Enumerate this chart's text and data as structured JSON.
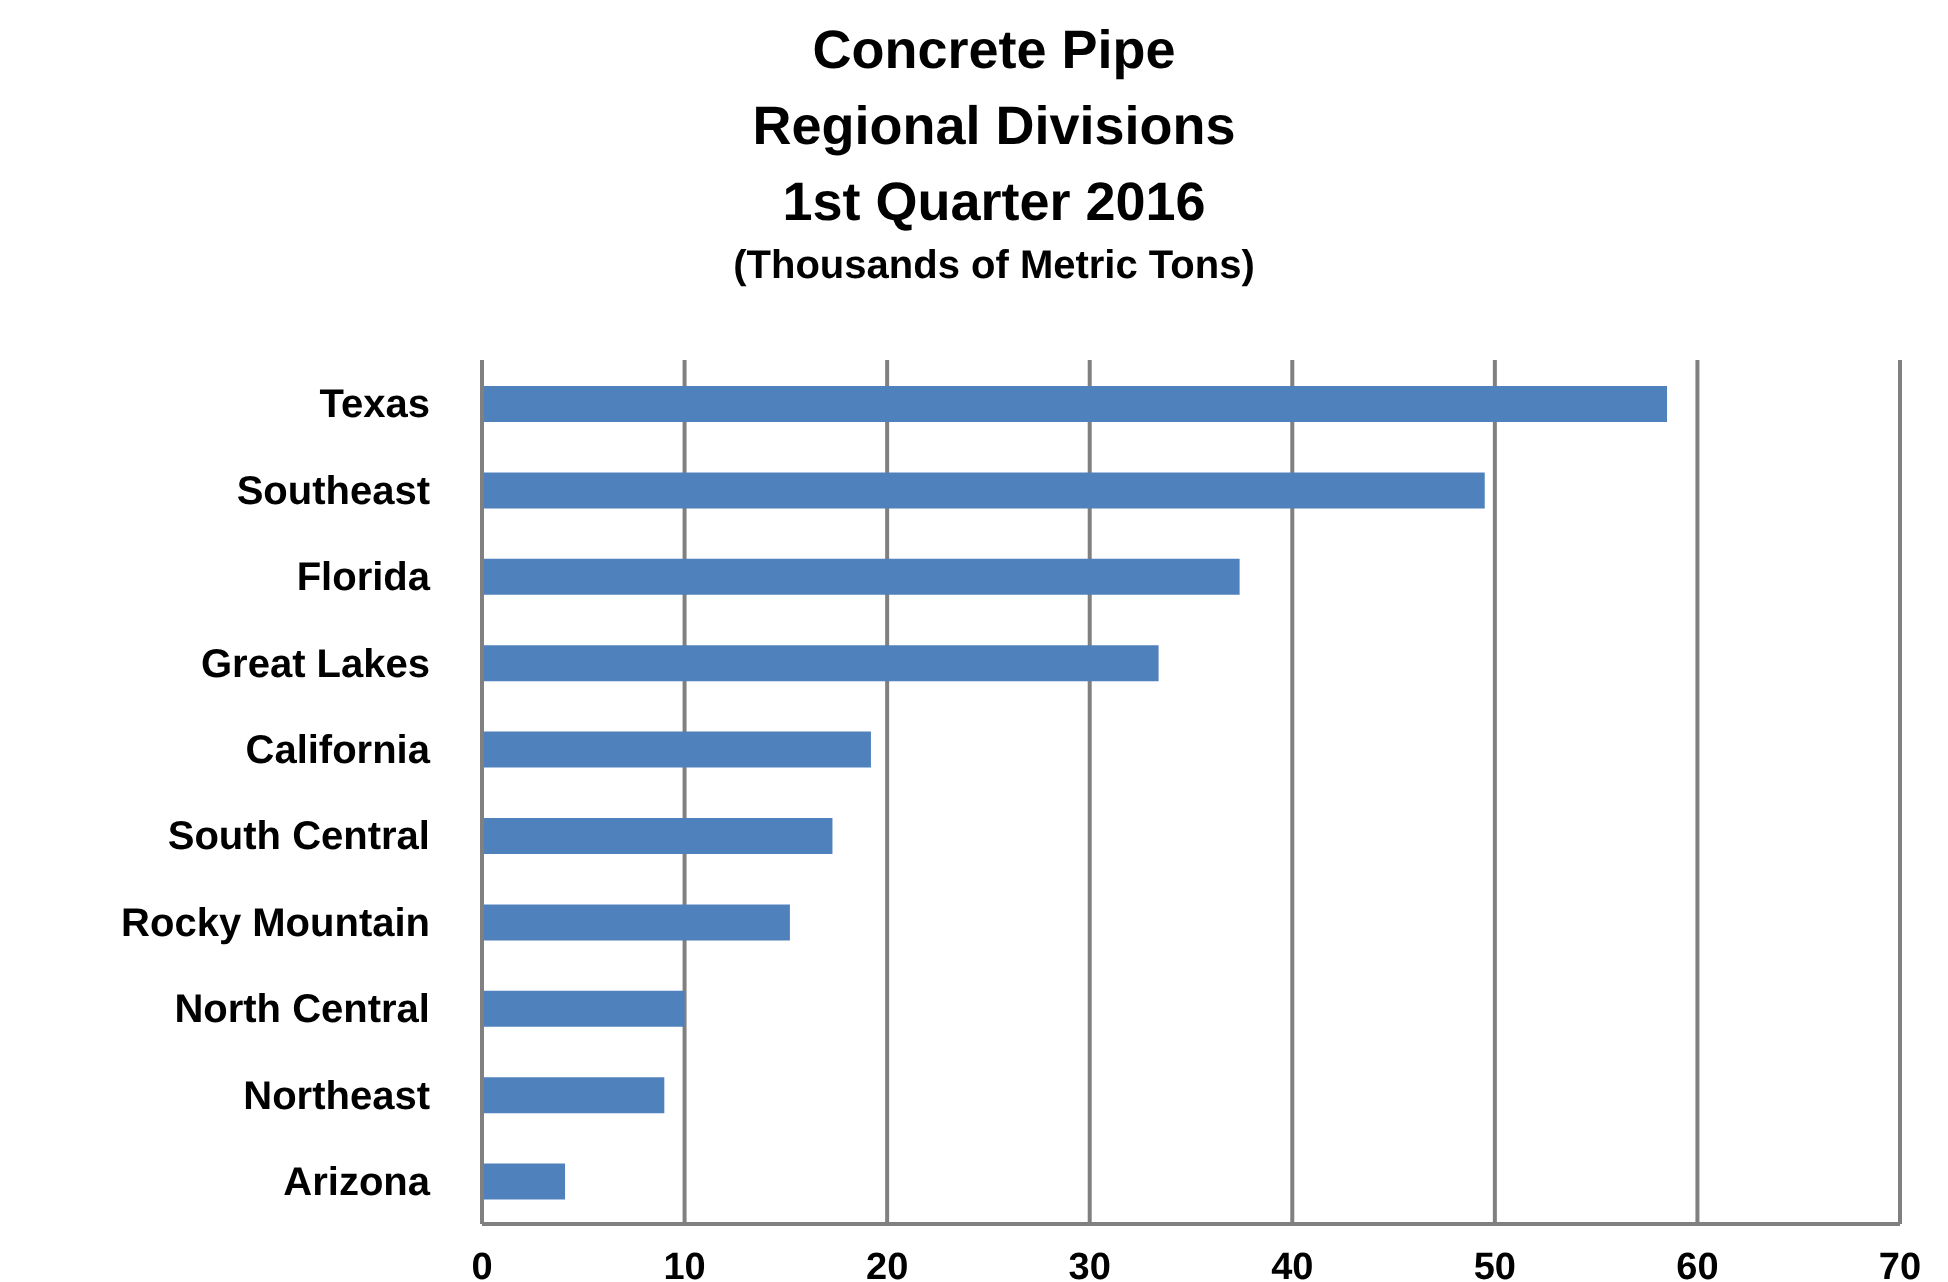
{
  "chart_data": {
    "type": "bar",
    "orientation": "horizontal",
    "title": "Concrete Pipe\nRegional Divisions\n1st Quarter 2016",
    "subtitle": "(Thousands of Metric Tons)",
    "categories": [
      "Texas",
      "Southeast",
      "Florida",
      "Great Lakes",
      "California",
      "South Central",
      "Rocky Mountain",
      "North Central",
      "Northeast",
      "Arizona"
    ],
    "values": [
      58.5,
      49.5,
      37.4,
      33.4,
      19.2,
      17.3,
      15.2,
      10.0,
      9.0,
      4.1
    ],
    "color": "#4f81bd",
    "xlim": [
      0,
      70
    ],
    "xticks": [
      0,
      10,
      20,
      30,
      40,
      50,
      60,
      70
    ],
    "grid": "x"
  }
}
